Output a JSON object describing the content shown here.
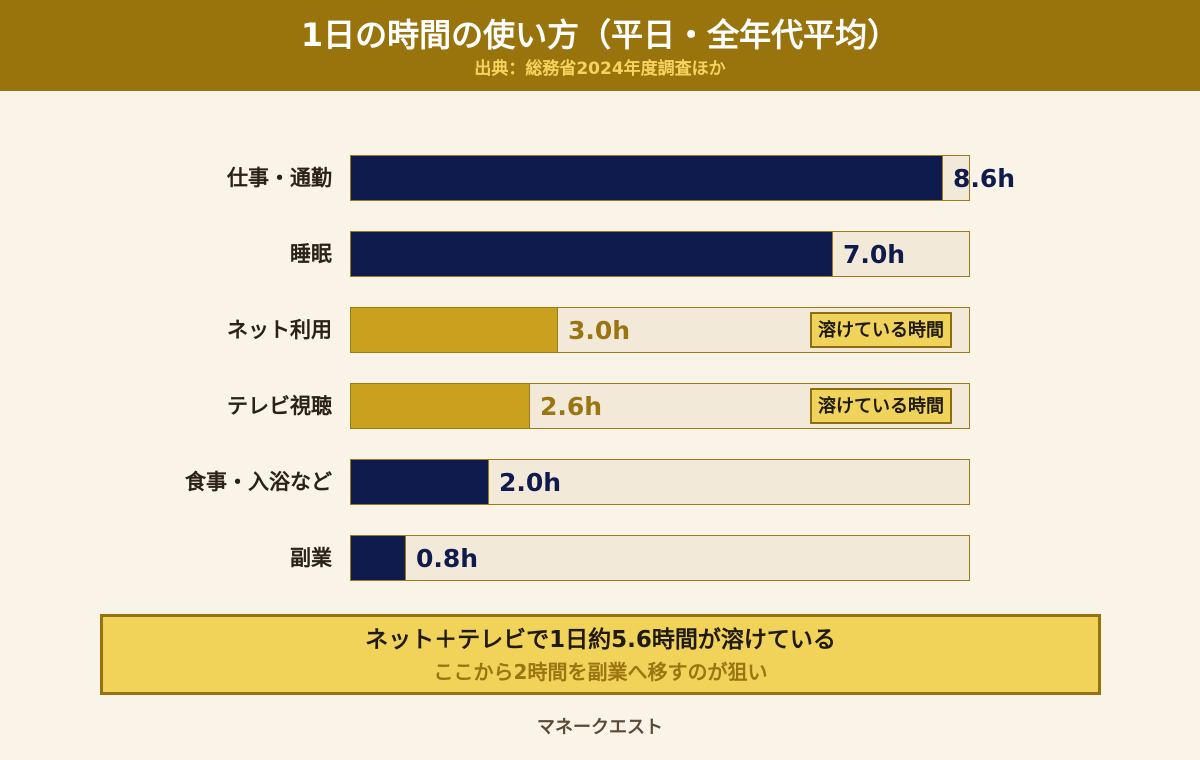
{
  "header": {
    "title": "1日の時間の使い方（平日・全年代平均）",
    "subtitle": "出典：総務省2024年度調査ほか"
  },
  "chart_data": {
    "type": "bar",
    "orientation": "horizontal",
    "categories": [
      "仕事・通勤",
      "睡眠",
      "ネット利用",
      "テレビ視聴",
      "食事・入浴など",
      "副業"
    ],
    "values": [
      8.6,
      7.0,
      3.0,
      2.6,
      2.0,
      0.8
    ],
    "value_labels": [
      "8.6h",
      "7.0h",
      "3.0h",
      "2.6h",
      "2.0h",
      "0.8h"
    ],
    "highlight": [
      false,
      false,
      true,
      true,
      false,
      false
    ],
    "badges": [
      "",
      "",
      "溶けている時間",
      "溶けている時間",
      "",
      ""
    ],
    "xlim": [
      0,
      9
    ],
    "grid": false,
    "colors": {
      "default": "#0f1b4c",
      "highlight": "#c9a11e",
      "track": "#f3e9d8"
    }
  },
  "note": {
    "main": "ネット＋テレビで1日約5.6時間が溶けている",
    "sub": "ここから2時間を副業へ移すのが狙い"
  },
  "footer": {
    "brand": "マネークエスト"
  }
}
